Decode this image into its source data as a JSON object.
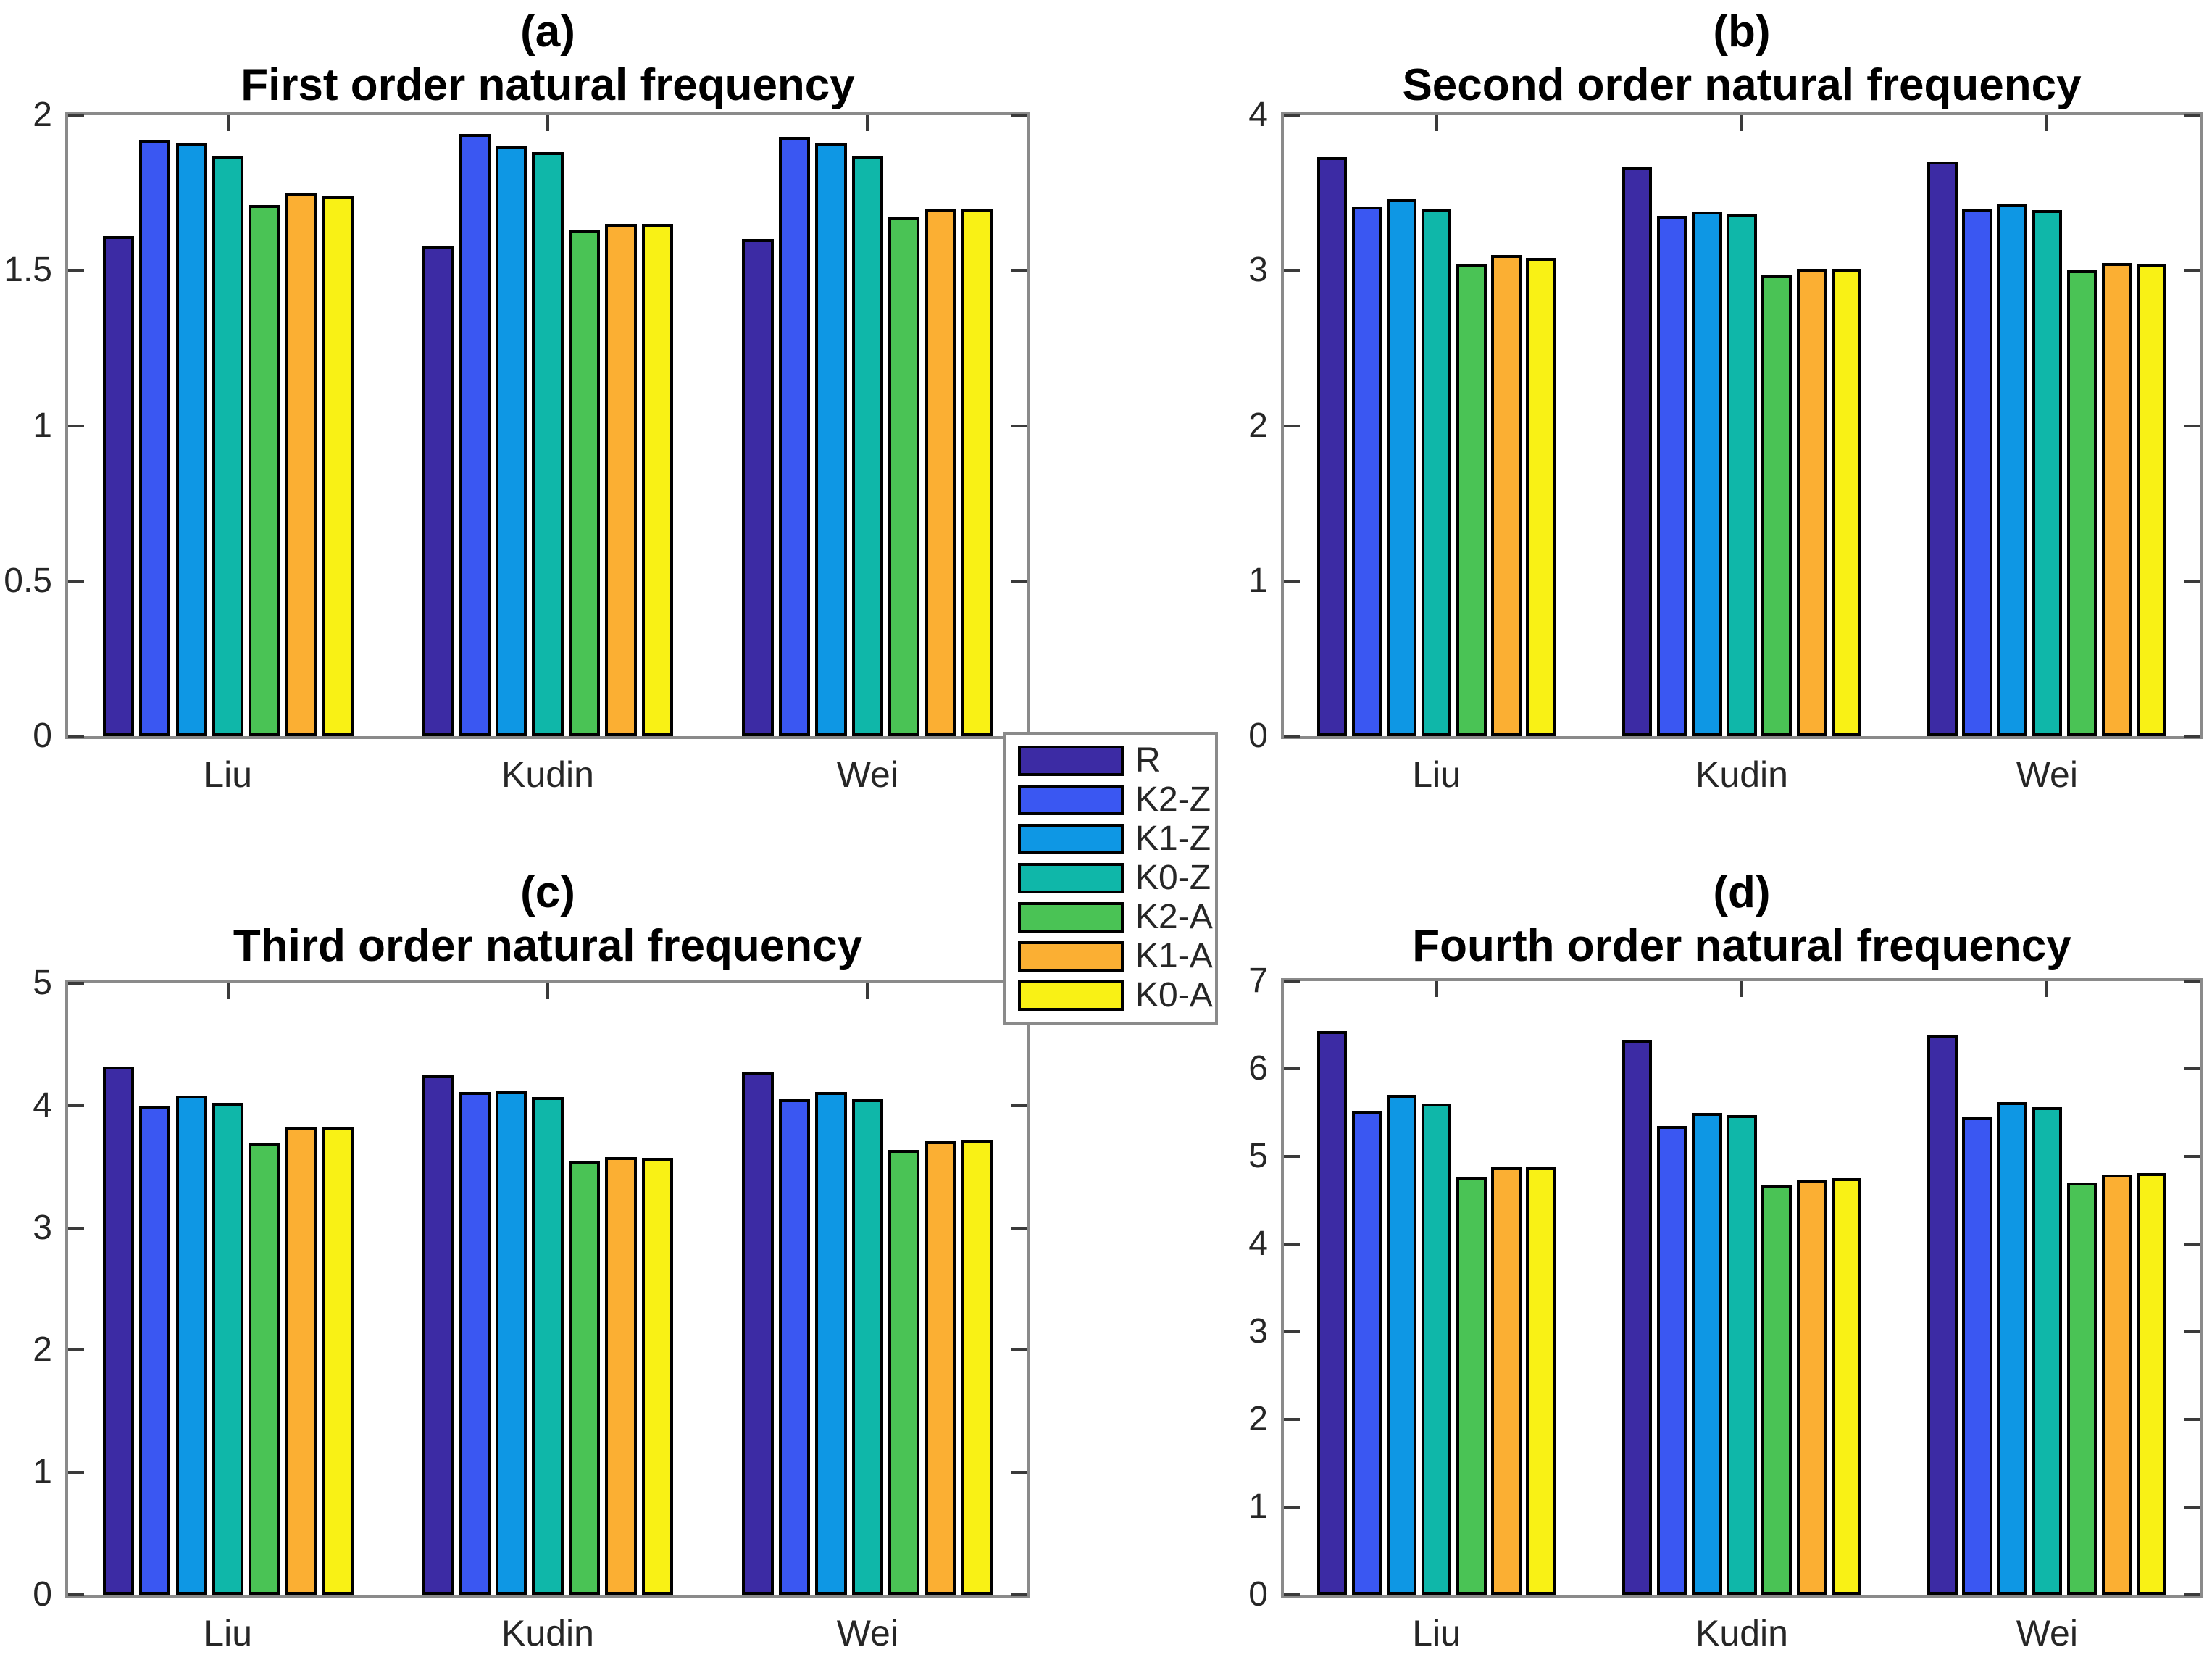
{
  "styles": {
    "background": "#FFFFFF",
    "axis_color": "#8A8A8A",
    "tick_color": "#3A3A3A",
    "text_color": "#262626",
    "title_color": "#000000"
  },
  "legend": {
    "items": [
      {
        "label": "R",
        "color": "#3C2BA4"
      },
      {
        "label": "K2-Z",
        "color": "#3A57F2"
      },
      {
        "label": "K1-Z",
        "color": "#0E97E4"
      },
      {
        "label": "K0-Z",
        "color": "#0FB7A9"
      },
      {
        "label": "K2-A",
        "color": "#4AC355"
      },
      {
        "label": "K1-A",
        "color": "#FBAF33"
      },
      {
        "label": "K0-A",
        "color": "#F9F115"
      }
    ]
  },
  "chart_data": [
    {
      "id": "a",
      "panel_label": "(a)",
      "title": "First order natural frequency",
      "type": "bar",
      "categories": [
        "Liu",
        "Kudin",
        "Wei"
      ],
      "ylim": [
        0,
        2
      ],
      "yticks": [
        0,
        0.5,
        1,
        1.5,
        2
      ],
      "grid": false,
      "series": [
        {
          "name": "R",
          "color": "#3C2BA4",
          "values": [
            1.61,
            1.58,
            1.6
          ]
        },
        {
          "name": "K2-Z",
          "color": "#3A57F2",
          "values": [
            1.92,
            1.94,
            1.93
          ]
        },
        {
          "name": "K1-Z",
          "color": "#0E97E4",
          "values": [
            1.91,
            1.9,
            1.91
          ]
        },
        {
          "name": "K0-Z",
          "color": "#0FB7A9",
          "values": [
            1.87,
            1.88,
            1.87
          ]
        },
        {
          "name": "K2-A",
          "color": "#4AC355",
          "values": [
            1.71,
            1.63,
            1.67
          ]
        },
        {
          "name": "K1-A",
          "color": "#FBAF33",
          "values": [
            1.75,
            1.65,
            1.7
          ]
        },
        {
          "name": "K0-A",
          "color": "#F9F115",
          "values": [
            1.74,
            1.65,
            1.7
          ]
        }
      ]
    },
    {
      "id": "b",
      "panel_label": "(b)",
      "title": "Second order natural frequency",
      "type": "bar",
      "categories": [
        "Liu",
        "Kudin",
        "Wei"
      ],
      "ylim": [
        0,
        4
      ],
      "yticks": [
        0,
        1,
        2,
        3,
        4
      ],
      "grid": false,
      "series": [
        {
          "name": "R",
          "color": "#3C2BA4",
          "values": [
            3.73,
            3.67,
            3.7
          ]
        },
        {
          "name": "K2-Z",
          "color": "#3A57F2",
          "values": [
            3.41,
            3.35,
            3.4
          ]
        },
        {
          "name": "K1-Z",
          "color": "#0E97E4",
          "values": [
            3.46,
            3.38,
            3.43
          ]
        },
        {
          "name": "K0-Z",
          "color": "#0FB7A9",
          "values": [
            3.4,
            3.36,
            3.39
          ]
        },
        {
          "name": "K2-A",
          "color": "#4AC355",
          "values": [
            3.04,
            2.97,
            3.0
          ]
        },
        {
          "name": "K1-A",
          "color": "#FBAF33",
          "values": [
            3.1,
            3.01,
            3.05
          ]
        },
        {
          "name": "K0-A",
          "color": "#F9F115",
          "values": [
            3.08,
            3.01,
            3.04
          ]
        }
      ]
    },
    {
      "id": "c",
      "panel_label": "(c)",
      "title": "Third order natural frequency",
      "type": "bar",
      "categories": [
        "Liu",
        "Kudin",
        "Wei"
      ],
      "ylim": [
        0,
        5
      ],
      "yticks": [
        0,
        1,
        2,
        3,
        4,
        5
      ],
      "grid": false,
      "series": [
        {
          "name": "R",
          "color": "#3C2BA4",
          "values": [
            4.32,
            4.25,
            4.28
          ]
        },
        {
          "name": "K2-Z",
          "color": "#3A57F2",
          "values": [
            4.0,
            4.11,
            4.05
          ]
        },
        {
          "name": "K1-Z",
          "color": "#0E97E4",
          "values": [
            4.08,
            4.12,
            4.11
          ]
        },
        {
          "name": "K0-Z",
          "color": "#0FB7A9",
          "values": [
            4.02,
            4.07,
            4.05
          ]
        },
        {
          "name": "K2-A",
          "color": "#4AC355",
          "values": [
            3.69,
            3.55,
            3.64
          ]
        },
        {
          "name": "K1-A",
          "color": "#FBAF33",
          "values": [
            3.82,
            3.58,
            3.71
          ]
        },
        {
          "name": "K0-A",
          "color": "#F9F115",
          "values": [
            3.82,
            3.57,
            3.72
          ]
        }
      ]
    },
    {
      "id": "d",
      "panel_label": "(d)",
      "title": "Fourth order natural frequency",
      "type": "bar",
      "categories": [
        "Liu",
        "Kudin",
        "Wei"
      ],
      "ylim": [
        0,
        7
      ],
      "yticks": [
        0,
        1,
        2,
        3,
        4,
        5,
        6,
        7
      ],
      "grid": false,
      "series": [
        {
          "name": "R",
          "color": "#3C2BA4",
          "values": [
            6.43,
            6.32,
            6.38
          ]
        },
        {
          "name": "K2-Z",
          "color": "#3A57F2",
          "values": [
            5.52,
            5.35,
            5.45
          ]
        },
        {
          "name": "K1-Z",
          "color": "#0E97E4",
          "values": [
            5.7,
            5.5,
            5.62
          ]
        },
        {
          "name": "K0-Z",
          "color": "#0FB7A9",
          "values": [
            5.6,
            5.47,
            5.56
          ]
        },
        {
          "name": "K2-A",
          "color": "#4AC355",
          "values": [
            4.76,
            4.67,
            4.7
          ]
        },
        {
          "name": "K1-A",
          "color": "#FBAF33",
          "values": [
            4.88,
            4.73,
            4.79
          ]
        },
        {
          "name": "K0-A",
          "color": "#F9F115",
          "values": [
            4.88,
            4.75,
            4.81
          ]
        }
      ]
    }
  ]
}
